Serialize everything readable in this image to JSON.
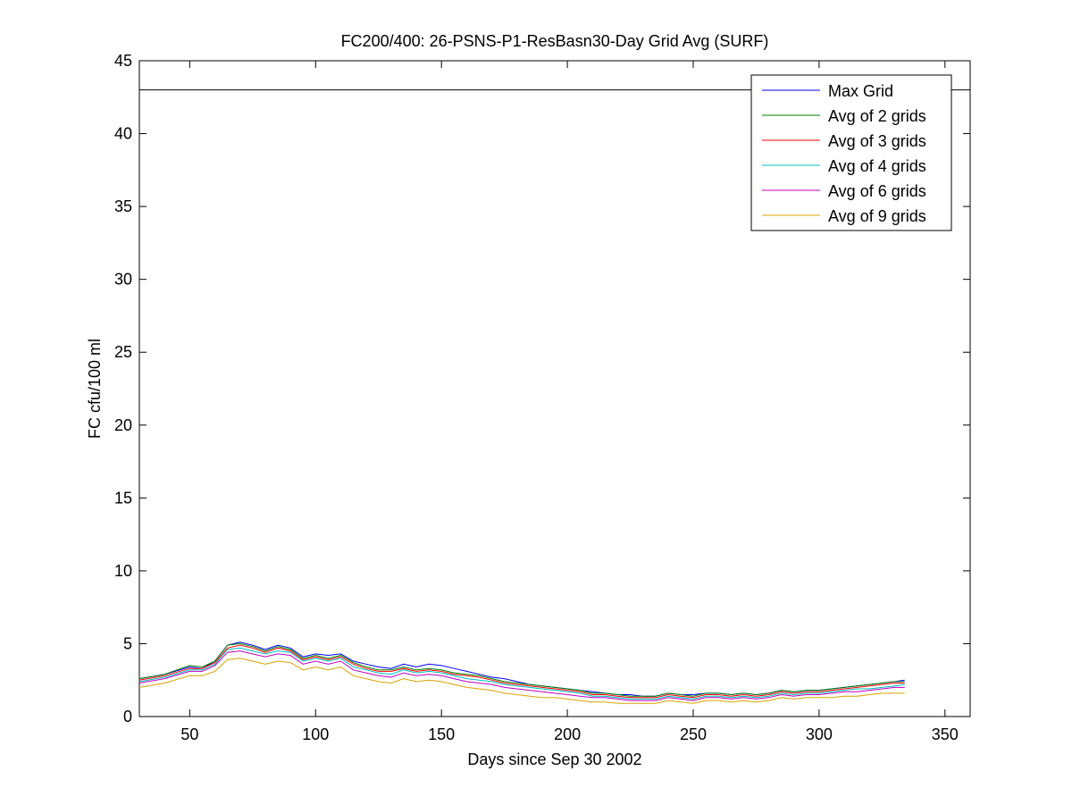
{
  "chart_data": {
    "type": "line",
    "title": "FC200/400: 26-PSNS-P1-ResBasn30-Day Grid Avg (SURF)",
    "xlabel": "Days since Sep 30 2002",
    "ylabel": "FC cfu/100 ml",
    "xlim": [
      30,
      360
    ],
    "ylim": [
      0,
      45
    ],
    "xticks": [
      50,
      100,
      150,
      200,
      250,
      300,
      350
    ],
    "yticks": [
      0,
      5,
      10,
      15,
      20,
      25,
      30,
      35,
      40,
      45
    ],
    "grid": false,
    "legend_position": "top-right",
    "reference_line": {
      "y": 43,
      "color": "#000000"
    },
    "x": [
      30,
      40,
      50,
      55,
      60,
      65,
      70,
      75,
      80,
      85,
      90,
      95,
      100,
      105,
      110,
      115,
      120,
      125,
      130,
      135,
      140,
      145,
      150,
      155,
      160,
      165,
      170,
      175,
      180,
      185,
      190,
      195,
      200,
      205,
      210,
      215,
      220,
      225,
      230,
      235,
      240,
      245,
      250,
      255,
      260,
      265,
      270,
      275,
      280,
      285,
      290,
      295,
      300,
      305,
      310,
      315,
      320,
      325,
      330,
      334
    ],
    "series": [
      {
        "name": "Max Grid",
        "color": "#0000ff",
        "values": [
          2.6,
          2.9,
          3.4,
          3.3,
          3.8,
          4.9,
          5.1,
          4.9,
          4.6,
          4.9,
          4.7,
          4.1,
          4.3,
          4.2,
          4.3,
          3.8,
          3.6,
          3.4,
          3.3,
          3.6,
          3.4,
          3.6,
          3.5,
          3.3,
          3.1,
          2.9,
          2.7,
          2.6,
          2.4,
          2.2,
          2.1,
          2.0,
          1.9,
          1.8,
          1.7,
          1.6,
          1.5,
          1.5,
          1.4,
          1.4,
          1.6,
          1.5,
          1.5,
          1.6,
          1.6,
          1.5,
          1.6,
          1.5,
          1.6,
          1.8,
          1.7,
          1.8,
          1.8,
          1.9,
          2.0,
          2.1,
          2.2,
          2.3,
          2.4,
          2.5
        ]
      },
      {
        "name": "Avg of 2 grids",
        "color": "#008000",
        "values": [
          2.6,
          2.9,
          3.5,
          3.4,
          3.8,
          4.9,
          5.0,
          4.8,
          4.5,
          4.8,
          4.6,
          4.0,
          4.2,
          4.0,
          4.2,
          3.7,
          3.4,
          3.2,
          3.2,
          3.4,
          3.2,
          3.3,
          3.2,
          3.0,
          2.9,
          2.8,
          2.6,
          2.4,
          2.3,
          2.2,
          2.1,
          2.0,
          1.9,
          1.8,
          1.6,
          1.6,
          1.5,
          1.4,
          1.4,
          1.4,
          1.6,
          1.5,
          1.4,
          1.6,
          1.6,
          1.5,
          1.6,
          1.5,
          1.6,
          1.8,
          1.7,
          1.8,
          1.8,
          1.9,
          2.0,
          2.1,
          2.2,
          2.3,
          2.4,
          2.4
        ]
      },
      {
        "name": "Avg of 3 grids",
        "color": "#ff0000",
        "values": [
          2.5,
          2.8,
          3.3,
          3.3,
          3.7,
          4.7,
          4.9,
          4.7,
          4.4,
          4.7,
          4.5,
          3.9,
          4.1,
          3.9,
          4.1,
          3.6,
          3.3,
          3.1,
          3.1,
          3.3,
          3.1,
          3.2,
          3.1,
          2.9,
          2.8,
          2.7,
          2.5,
          2.3,
          2.2,
          2.1,
          2.0,
          1.9,
          1.8,
          1.7,
          1.5,
          1.5,
          1.4,
          1.3,
          1.3,
          1.3,
          1.5,
          1.4,
          1.3,
          1.5,
          1.5,
          1.4,
          1.5,
          1.4,
          1.5,
          1.7,
          1.6,
          1.7,
          1.7,
          1.8,
          1.9,
          2.0,
          2.1,
          2.2,
          2.3,
          2.3
        ]
      },
      {
        "name": "Avg of 4 grids",
        "color": "#00bfbf",
        "values": [
          2.4,
          2.7,
          3.2,
          3.2,
          3.6,
          4.6,
          4.7,
          4.5,
          4.3,
          4.5,
          4.4,
          3.8,
          4.0,
          3.8,
          4.0,
          3.4,
          3.2,
          3.0,
          2.9,
          3.2,
          3.0,
          3.1,
          3.0,
          2.8,
          2.6,
          2.5,
          2.4,
          2.2,
          2.1,
          2.0,
          1.9,
          1.8,
          1.7,
          1.6,
          1.4,
          1.4,
          1.3,
          1.2,
          1.2,
          1.2,
          1.4,
          1.3,
          1.2,
          1.4,
          1.4,
          1.3,
          1.4,
          1.3,
          1.4,
          1.6,
          1.5,
          1.6,
          1.6,
          1.7,
          1.8,
          1.9,
          1.9,
          2.0,
          2.1,
          2.2
        ]
      },
      {
        "name": "Avg of 6 grids",
        "color": "#bf00bf",
        "values": [
          2.3,
          2.6,
          3.1,
          3.1,
          3.5,
          4.4,
          4.5,
          4.3,
          4.1,
          4.3,
          4.2,
          3.6,
          3.8,
          3.6,
          3.8,
          3.2,
          3.0,
          2.8,
          2.7,
          3.0,
          2.8,
          2.9,
          2.8,
          2.6,
          2.4,
          2.3,
          2.2,
          2.0,
          1.9,
          1.8,
          1.7,
          1.6,
          1.5,
          1.4,
          1.3,
          1.3,
          1.2,
          1.1,
          1.1,
          1.1,
          1.3,
          1.2,
          1.1,
          1.3,
          1.3,
          1.2,
          1.3,
          1.2,
          1.3,
          1.5,
          1.4,
          1.5,
          1.5,
          1.6,
          1.7,
          1.7,
          1.8,
          1.9,
          2.0,
          2.0
        ]
      },
      {
        "name": "Avg of 9 grids",
        "color": "#d9a300",
        "values": [
          2.0,
          2.3,
          2.8,
          2.8,
          3.1,
          3.9,
          4.0,
          3.8,
          3.6,
          3.8,
          3.7,
          3.2,
          3.4,
          3.2,
          3.4,
          2.8,
          2.6,
          2.4,
          2.3,
          2.6,
          2.4,
          2.5,
          2.4,
          2.2,
          2.0,
          1.9,
          1.8,
          1.6,
          1.5,
          1.4,
          1.3,
          1.3,
          1.2,
          1.1,
          1.0,
          1.0,
          0.9,
          0.9,
          0.9,
          0.9,
          1.1,
          1.0,
          0.9,
          1.1,
          1.1,
          1.0,
          1.1,
          1.0,
          1.1,
          1.3,
          1.2,
          1.3,
          1.3,
          1.3,
          1.4,
          1.4,
          1.5,
          1.6,
          1.6,
          1.6
        ]
      }
    ]
  }
}
